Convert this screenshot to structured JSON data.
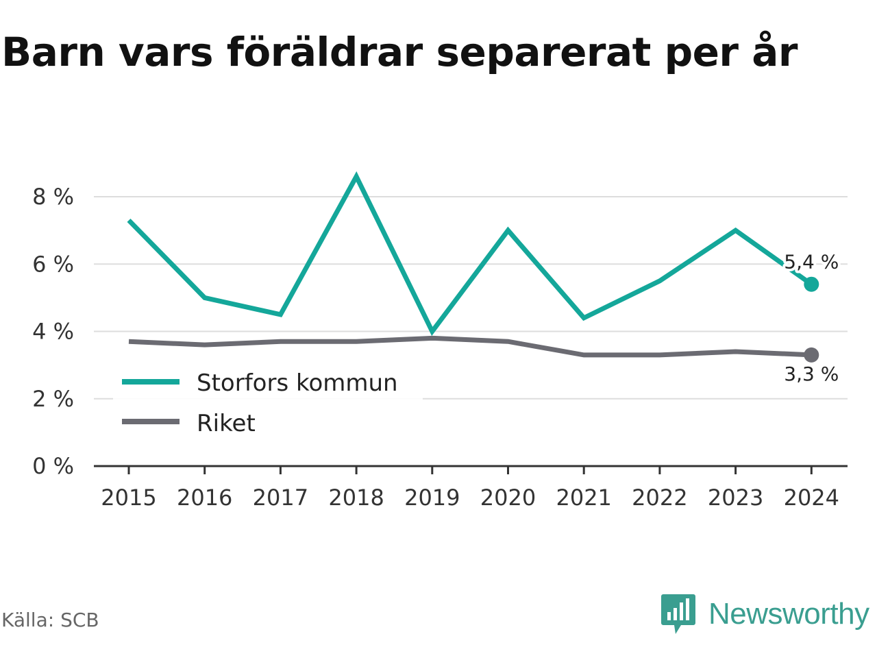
{
  "title": "Barn vars föräldrar separerat per år",
  "source": "Källa: SCB",
  "brand": {
    "name": "Newsworthy",
    "logo_icon": "bar-chart-speech-bubble-icon"
  },
  "colors": {
    "primary": "#14a79a",
    "secondary": "#6b6b72",
    "grid": "#dddddd",
    "axis": "#333333"
  },
  "chart_data": {
    "type": "line",
    "title": "Barn vars föräldrar separerat per år",
    "x": [
      "2015",
      "2016",
      "2017",
      "2018",
      "2019",
      "2020",
      "2021",
      "2022",
      "2023",
      "2024"
    ],
    "y_ticks": [
      "0 %",
      "2 %",
      "4 %",
      "6 %",
      "8 %"
    ],
    "ylim": [
      0,
      8
    ],
    "grid": true,
    "legend_position": "bottom-left",
    "series": [
      {
        "name": "Storfors kommun",
        "values": [
          7.3,
          5.0,
          4.5,
          8.6,
          4.0,
          7.0,
          4.4,
          5.5,
          7.0,
          5.4
        ],
        "end_label": "5,4 %"
      },
      {
        "name": "Riket",
        "values": [
          3.7,
          3.6,
          3.7,
          3.7,
          3.8,
          3.7,
          3.3,
          3.3,
          3.4,
          3.3
        ],
        "end_label": "3,3 %"
      }
    ]
  }
}
